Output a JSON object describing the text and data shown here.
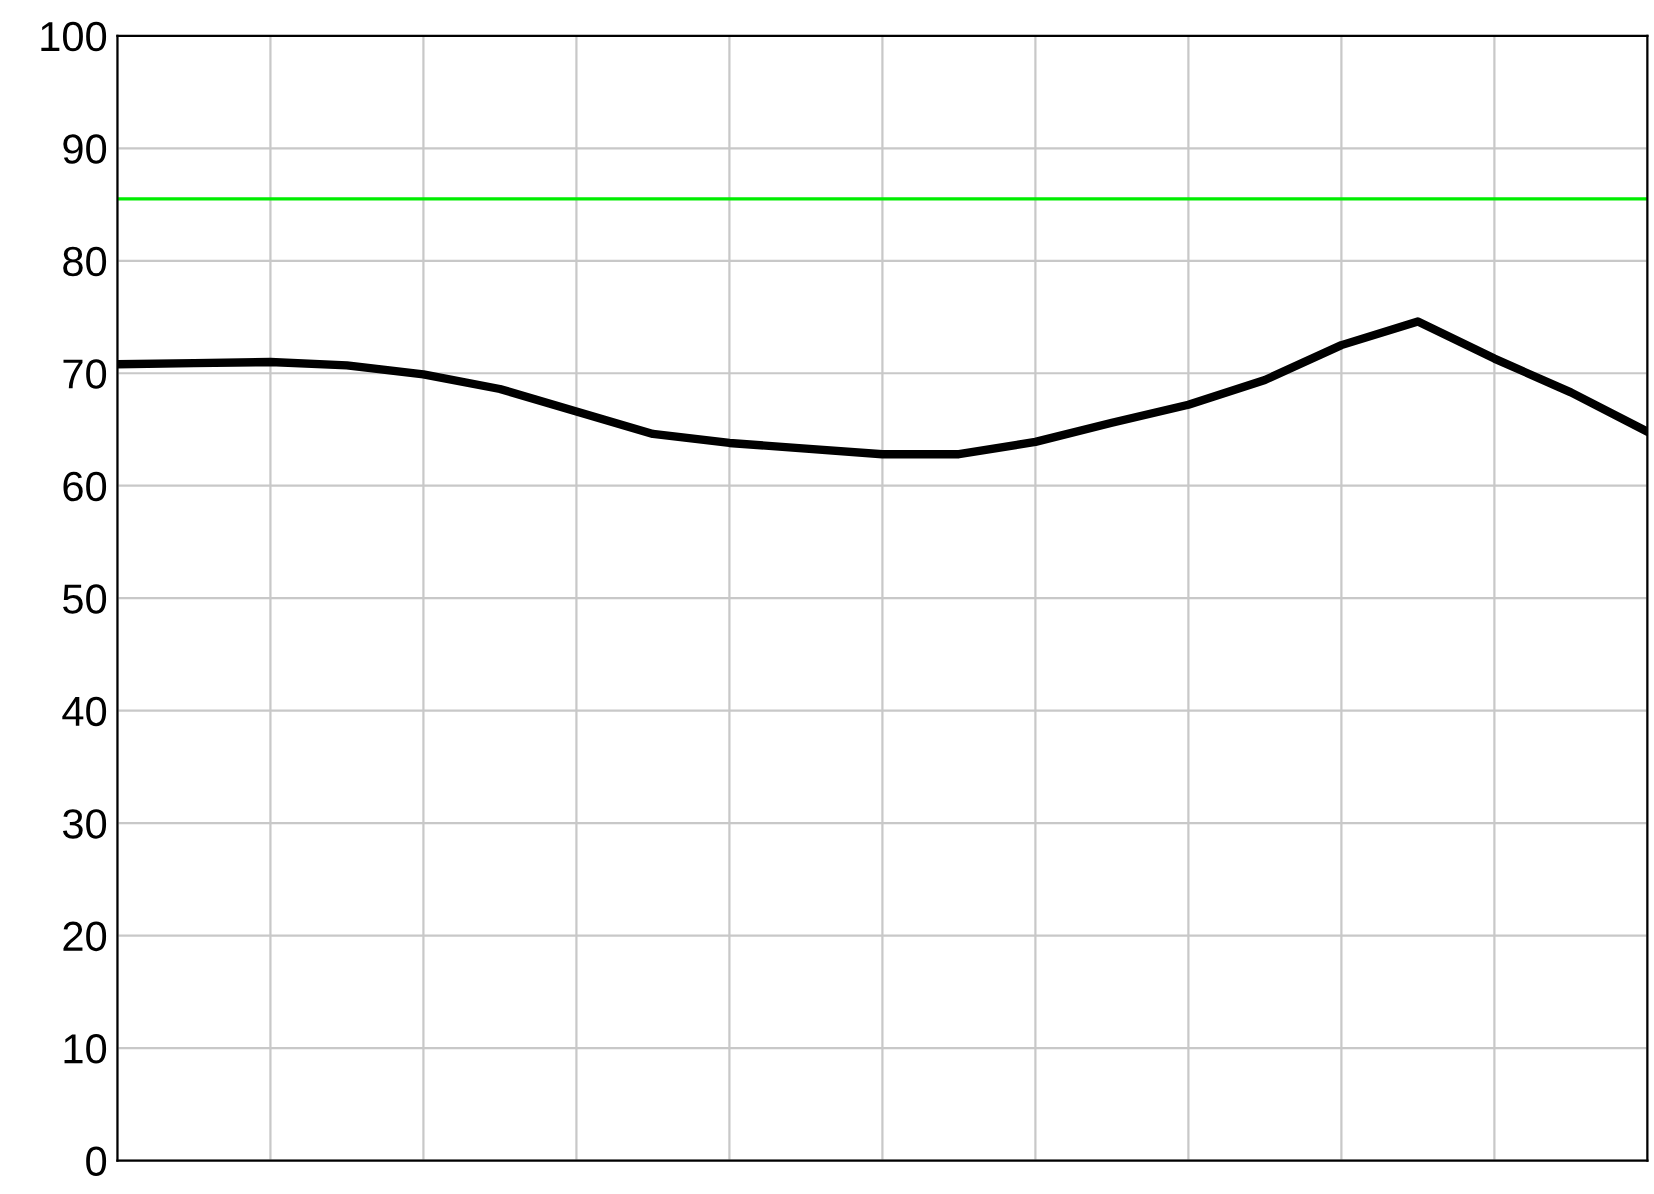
{
  "chart_data": {
    "type": "line",
    "categories": [
      null,
      null,
      null,
      null,
      null,
      null,
      null,
      null,
      null,
      null,
      null,
      null,
      null,
      null,
      null,
      null,
      null,
      null,
      null,
      null,
      null
    ],
    "series": [
      {
        "color": "#000000",
        "values": [
          70.8,
          70.9,
          71.0,
          70.7,
          69.9,
          68.6,
          66.6,
          64.6,
          63.8,
          63.3,
          62.8,
          62.8,
          63.9,
          65.6,
          67.2,
          69.4,
          72.5,
          74.6,
          71.3,
          68.3,
          64.8
        ]
      }
    ],
    "ylim": [
      0,
      100
    ],
    "yticks": [
      0,
      10,
      20,
      30,
      40,
      50,
      60,
      70,
      80,
      90,
      100
    ],
    "ref_lines": [
      {
        "axis": "y",
        "value": 85.5,
        "color": "#00ee00"
      }
    ],
    "grid": true,
    "marker": "none",
    "line_style": "solid"
  }
}
